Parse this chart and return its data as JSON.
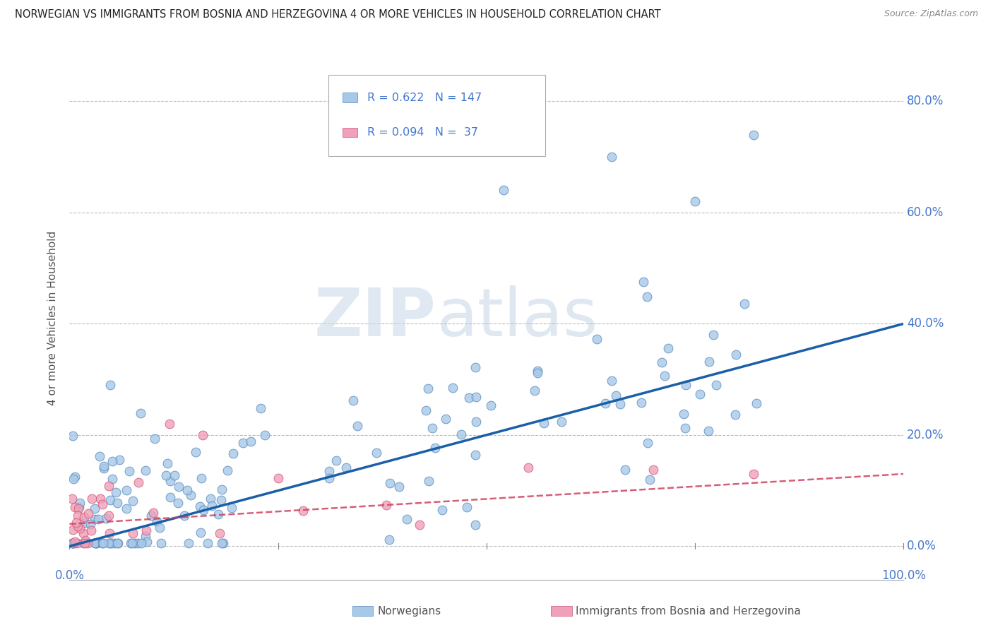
{
  "title": "NORWEGIAN VS IMMIGRANTS FROM BOSNIA AND HERZEGOVINA 4 OR MORE VEHICLES IN HOUSEHOLD CORRELATION CHART",
  "source": "Source: ZipAtlas.com",
  "ylabel": "4 or more Vehicles in Household",
  "yticks": [
    "0.0%",
    "20.0%",
    "40.0%",
    "60.0%",
    "80.0%"
  ],
  "ytick_vals": [
    0.0,
    0.2,
    0.4,
    0.6,
    0.8
  ],
  "xrange": [
    0.0,
    1.0
  ],
  "yrange": [
    -0.06,
    0.88
  ],
  "legend_norwegian_R": "0.622",
  "legend_norwegian_N": "147",
  "legend_bosnian_R": "0.094",
  "legend_bosnian_N": "37",
  "legend_label_norwegian": "Norwegians",
  "legend_label_bosnian": "Immigrants from Bosnia and Herzegovina",
  "blue_scatter_color": "#a8c8e8",
  "blue_line_color": "#1a5fa8",
  "pink_scatter_color": "#f0a0b8",
  "pink_line_color": "#d04060",
  "blue_marker_edge": "#5588bb",
  "pink_marker_edge": "#cc5577",
  "watermark_zip": "ZIP",
  "watermark_atlas": "atlas",
  "background_color": "#ffffff",
  "grid_color": "#bbbbbb",
  "title_color": "#222222",
  "axis_label_color": "#4477cc",
  "legend_R_color": "#4477cc",
  "blue_trend_start_x": 0.0,
  "blue_trend_start_y": 0.0,
  "blue_trend_end_x": 1.0,
  "blue_trend_end_y": 0.4,
  "pink_trend_start_x": 0.0,
  "pink_trend_start_y": 0.04,
  "pink_trend_end_x": 1.0,
  "pink_trend_end_y": 0.13
}
